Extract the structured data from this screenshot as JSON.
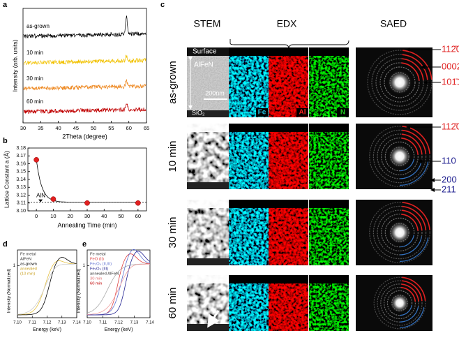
{
  "panel_a": {
    "label": "a",
    "ylabel": "Intensity (arb. units)",
    "xlabel": "2Theta (degree)",
    "xlim": [
      30,
      65
    ],
    "xticks": [
      30,
      35,
      40,
      45,
      50,
      55,
      60,
      65
    ],
    "series": [
      {
        "name": "as-grown",
        "color": "#000000"
      },
      {
        "name": "10 min",
        "color": "#f2c200"
      },
      {
        "name": "30 min",
        "color": "#ee8a24"
      },
      {
        "name": "60 min",
        "color": "#c00000"
      }
    ]
  },
  "panel_b": {
    "label": "b",
    "type": "scatter",
    "ylabel": "Lattice Constant a (Å)",
    "xlabel": "Annealing Time (min)",
    "x": [
      0,
      10,
      30,
      60
    ],
    "values": [
      3.165,
      3.115,
      3.11,
      3.11
    ],
    "color": "#e02020",
    "xlim": [
      -5,
      65
    ],
    "xticks": [
      0,
      10,
      20,
      30,
      40,
      50,
      60
    ],
    "ylim": [
      3.1,
      3.18
    ],
    "yticks": [
      {
        "value": 3.1,
        "label": "3.10"
      },
      3.11,
      3.12,
      3.13,
      3.14,
      3.15,
      3.16,
      3.17,
      {
        "value": 3.18,
        "label": "3.18"
      }
    ],
    "reference": {
      "label": "AlN",
      "value": 3.111
    }
  },
  "panel_d": {
    "label": "d",
    "ylabel": "Intensity (Normalized)",
    "xlabel": "Energy (keV)",
    "xlim": [
      7.1,
      7.14
    ],
    "xticks": [
      {
        "value": 7.1,
        "label": "7.10"
      },
      7.11,
      7.12,
      7.13,
      7.14
    ],
    "ylim": [
      0,
      1.3
    ],
    "yticks": [
      1
    ],
    "legend": [
      "Fe metal",
      "AlFeN",
      "as-grown",
      "annealed",
      "(10 min)"
    ]
  },
  "panel_e": {
    "label": "e",
    "ylabel": "Intensity (Normalized)",
    "xlabel": "Energy (keV)",
    "xlim": [
      7.1,
      7.14
    ],
    "xticks": [
      {
        "value": 7.1,
        "label": "7.10"
      },
      7.11,
      7.12,
      7.13,
      7.14
    ],
    "ylim": [
      0,
      1.3
    ],
    "yticks": [
      1
    ],
    "legend": [
      "Fe metal",
      "FeO (II)",
      "Fe₃O₄ (II,III)",
      "Fe₂O₃ (III)",
      "annealed AlFeN",
      "30 min",
      "60 min"
    ]
  },
  "panel_c": {
    "label": "c",
    "columns": [
      "STEM",
      "EDX",
      "SAED"
    ],
    "rows": [
      "as-grown",
      "10 min",
      "30 min",
      "60 min"
    ],
    "stem_labels": {
      "surface": "Surface",
      "layer": "AlFeN",
      "scale": "200nm",
      "substrate": "SiO₂"
    },
    "elements": [
      "Fe",
      "Al",
      "N"
    ],
    "saed_red": [
      "112̄0",
      "0002",
      "101̄1",
      "112̄0"
    ],
    "saed_blue": [
      "110",
      "200",
      "211"
    ]
  }
}
